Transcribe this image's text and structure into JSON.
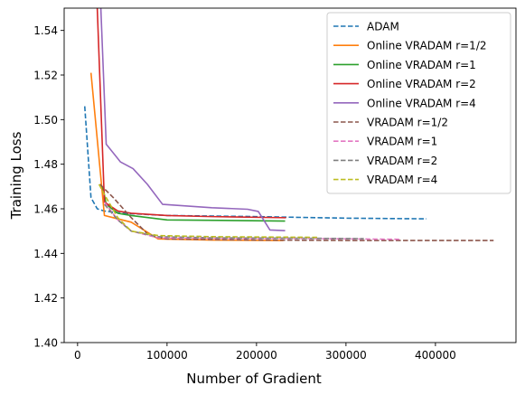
{
  "chart_data": {
    "type": "line",
    "title": "",
    "xlabel": "Number of Gradient",
    "ylabel": "Training Loss",
    "xlim": [
      -15000,
      490000
    ],
    "ylim": [
      1.4,
      1.55
    ],
    "xticks": [
      0,
      100000,
      200000,
      300000,
      400000
    ],
    "xtick_labels": [
      "0",
      "100000",
      "200000",
      "300000",
      "400000"
    ],
    "yticks": [
      1.4,
      1.42,
      1.44,
      1.46,
      1.48,
      1.5,
      1.52,
      1.54
    ],
    "ytick_labels": [
      "1.40",
      "1.42",
      "1.44",
      "1.46",
      "1.48",
      "1.50",
      "1.52",
      "1.54"
    ],
    "grid": false,
    "legend_position": "top-right",
    "series": [
      {
        "name": "ADAM",
        "color": "#1f77b4",
        "dash": "dashed",
        "x": [
          8000,
          15000,
          22000,
          30000,
          50000,
          100000,
          200000,
          300000,
          390000
        ],
        "y": [
          1.506,
          1.465,
          1.46,
          1.459,
          1.458,
          1.457,
          1.4565,
          1.4558,
          1.4555
        ]
      },
      {
        "name": "Online VRADAM r=1/2",
        "color": "#ff7f0e",
        "dash": "solid",
        "x": [
          15000,
          30000,
          60000,
          90000,
          150000,
          230000
        ],
        "y": [
          1.521,
          1.457,
          1.454,
          1.4465,
          1.446,
          1.4458
        ]
      },
      {
        "name": "Online VRADAM r=1",
        "color": "#2ca02c",
        "dash": "solid",
        "x": [
          28000,
          32000,
          45000,
          60000,
          100000,
          160000,
          232000
        ],
        "y": [
          1.47,
          1.462,
          1.458,
          1.457,
          1.455,
          1.4548,
          1.4545
        ]
      },
      {
        "name": "Online VRADAM r=2",
        "color": "#d62728",
        "dash": "solid",
        "x": [
          22000,
          30000,
          45000,
          60000,
          100000,
          150000,
          233000
        ],
        "y": [
          1.55,
          1.463,
          1.459,
          1.458,
          1.457,
          1.4565,
          1.456
        ]
      },
      {
        "name": "Online VRADAM r=4",
        "color": "#9467bd",
        "dash": "solid",
        "x": [
          26000,
          32000,
          48000,
          62000,
          78000,
          95000,
          150000,
          190000,
          202000,
          215000,
          232000
        ],
        "y": [
          1.55,
          1.489,
          1.481,
          1.478,
          1.471,
          1.462,
          1.4605,
          1.4598,
          1.4588,
          1.4505,
          1.4502
        ]
      },
      {
        "name": "VRADAM r=1/2",
        "color": "#8c564b",
        "dash": "dashed",
        "x": [
          25000,
          40000,
          60000,
          80000,
          100000,
          200000,
          300000,
          465000
        ],
        "y": [
          1.471,
          1.465,
          1.456,
          1.448,
          1.4465,
          1.446,
          1.4458,
          1.4458
        ]
      },
      {
        "name": "VRADAM r=1",
        "color": "#e377c2",
        "dash": "dashed",
        "x": [
          30000,
          45000,
          60000,
          90000,
          150000,
          250000,
          360000
        ],
        "y": [
          1.463,
          1.455,
          1.45,
          1.447,
          1.4468,
          1.4467,
          1.4463
        ]
      },
      {
        "name": "VRADAM r=2",
        "color": "#7f7f7f",
        "dash": "dashed",
        "x": [
          30000,
          45000,
          60000,
          90000,
          150000,
          250000,
          320000
        ],
        "y": [
          1.462,
          1.455,
          1.45,
          1.4475,
          1.447,
          1.4468,
          1.4466
        ]
      },
      {
        "name": "VRADAM r=4",
        "color": "#bcbd22",
        "dash": "dashed",
        "x": [
          24000,
          32000,
          45000,
          60000,
          90000,
          150000,
          270000
        ],
        "y": [
          1.471,
          1.465,
          1.456,
          1.45,
          1.448,
          1.4475,
          1.4472
        ]
      }
    ]
  }
}
